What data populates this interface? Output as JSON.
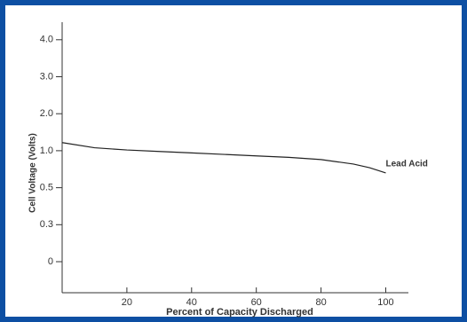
{
  "chart_data": {
    "type": "line",
    "x_label": "Percent of Capacity Discharged",
    "y_label": "Cell Voltage (Volts)",
    "xlim": [
      0,
      107
    ],
    "xticks": [
      20,
      40,
      60,
      80,
      100
    ],
    "ylim": [
      0,
      4
    ],
    "yticks": [
      0,
      0.3,
      0.5,
      {
        "value": 1,
        "label": "1.0"
      },
      {
        "value": 2,
        "label": "2.0"
      },
      {
        "value": 3,
        "label": "3.0"
      },
      {
        "value": 4,
        "label": "4.0"
      }
    ],
    "series": [
      {
        "name": "Lead Acid",
        "color": "#222222",
        "x": [
          0,
          10,
          20,
          30,
          40,
          50,
          60,
          70,
          80,
          90,
          95,
          100
        ],
        "values": [
          1.22,
          1.08,
          1.02,
          0.99,
          0.97,
          0.95,
          0.93,
          0.91,
          0.88,
          0.82,
          0.77,
          0.7
        ]
      }
    ]
  }
}
